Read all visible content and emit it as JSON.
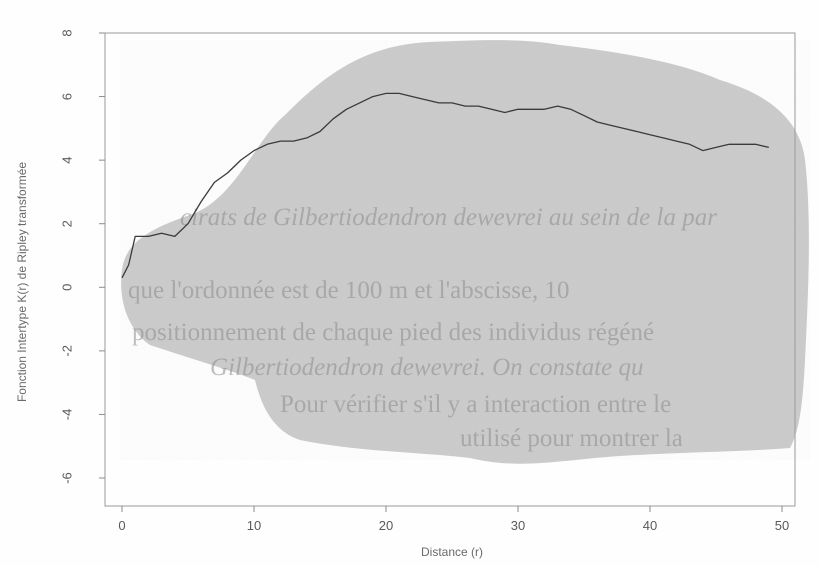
{
  "chart_data": {
    "type": "line",
    "xlabel": "Distance (r)",
    "ylabel": "Fonction Intertype K(r) de Ripley transformée",
    "xlim": [
      0,
      50
    ],
    "ylim": [
      -7,
      8
    ],
    "x_ticks": [
      "0",
      "10",
      "20",
      "30",
      "40",
      "50"
    ],
    "y_ticks": [
      "-6",
      "-4",
      "-2",
      "0",
      "2",
      "4",
      "6",
      "8"
    ],
    "series": [
      {
        "x": [
          0,
          0.5,
          1,
          2,
          3,
          4,
          5,
          6,
          7,
          8,
          9,
          10,
          11,
          12,
          13,
          14,
          15,
          16,
          17,
          18,
          19,
          20,
          21,
          22,
          23,
          24,
          25,
          26,
          27,
          28,
          29,
          30,
          31,
          32,
          33,
          34,
          35,
          36,
          37,
          38,
          39,
          40,
          41,
          42,
          43,
          44,
          45,
          46,
          47,
          48,
          49
        ],
        "y": [
          0.3,
          0.7,
          1.6,
          1.6,
          1.7,
          1.6,
          2.0,
          2.7,
          3.3,
          3.6,
          4.0,
          4.3,
          4.5,
          4.6,
          4.6,
          4.7,
          4.9,
          5.3,
          5.6,
          5.8,
          6.0,
          6.1,
          6.1,
          6.0,
          5.9,
          5.8,
          5.8,
          5.7,
          5.7,
          5.6,
          5.5,
          5.6,
          5.6,
          5.6,
          5.7,
          5.6,
          5.4,
          5.2,
          5.1,
          5.0,
          4.9,
          4.8,
          4.7,
          4.6,
          4.5,
          4.3,
          4.4,
          4.5,
          4.5,
          4.5,
          4.4
        ],
        "color": "#3a3a3a"
      }
    ],
    "grid": false
  },
  "bleed_through_text": [
    "que l'ordonnée est de 100 m et l'abscisse, 10",
    "positionnement de chaque pied des individus régéné",
    "Gilbertiodendron dewevrei. On constate qu",
    "Pour vérifier s'il y a interaction entre le",
    "utilisé pour montrer la",
    "cirats de Gilbertiodendron dewevrei au sein de la par"
  ]
}
